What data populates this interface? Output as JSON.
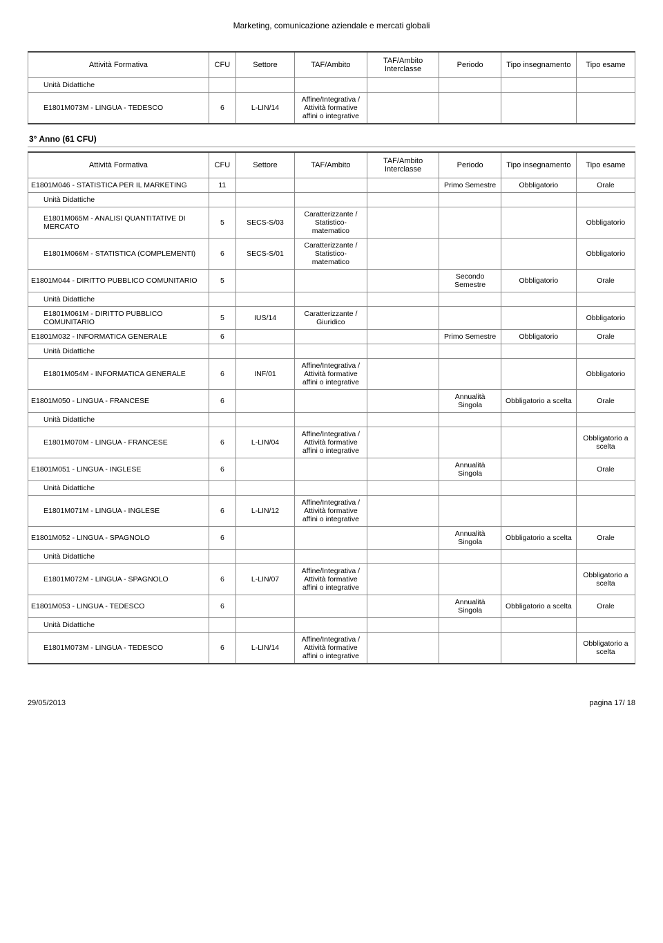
{
  "page_title": "Marketing, comunicazione aziendale e mercati globali",
  "headers": {
    "att": "Attività Formativa",
    "cfu": "CFU",
    "sett": "Settore",
    "taf": "TAF/Ambito",
    "tafi": "TAF/Ambito Interclasse",
    "per": "Periodo",
    "tipo": "Tipo insegnamento",
    "esame": "Tipo esame"
  },
  "unita_didattiche_label": "Unità Didattiche",
  "table1": {
    "ud_rows": [
      {
        "att": "E1801M073M - LINGUA - TEDESCO",
        "cfu": "6",
        "sett": "L-LIN/14",
        "taf": "Affine/Integrativa / Attività formative affini o integrative"
      }
    ]
  },
  "year_section": "3° Anno (61 CFU)",
  "table2": {
    "rows": [
      {
        "type": "main",
        "att": "E1801M046 - STATISTICA PER IL MARKETING",
        "cfu": "11",
        "sett": "",
        "taf": "",
        "tafi": "",
        "per": "Primo Semestre",
        "tipo": "Obbligatorio",
        "esame": "Orale"
      },
      {
        "type": "udlabel"
      },
      {
        "type": "ud",
        "att": "E1801M065M - ANALISI QUANTITATIVE DI MERCATO",
        "cfu": "5",
        "sett": "SECS-S/03",
        "taf": "Caratterizzante / Statistico-matematico",
        "esame": "Obbligatorio"
      },
      {
        "type": "ud",
        "att": "E1801M066M - STATISTICA (COMPLEMENTI)",
        "cfu": "6",
        "sett": "SECS-S/01",
        "taf": "Caratterizzante / Statistico-matematico",
        "esame": "Obbligatorio"
      },
      {
        "type": "main",
        "att": "E1801M044 - DIRITTO PUBBLICO COMUNITARIO",
        "cfu": "5",
        "sett": "",
        "taf": "",
        "tafi": "",
        "per": "Secondo Semestre",
        "tipo": "Obbligatorio",
        "esame": "Orale"
      },
      {
        "type": "udlabel"
      },
      {
        "type": "ud",
        "att": "E1801M061M - DIRITTO PUBBLICO COMUNITARIO",
        "cfu": "5",
        "sett": "IUS/14",
        "taf": "Caratterizzante / Giuridico",
        "esame": "Obbligatorio"
      },
      {
        "type": "main",
        "att": "E1801M032 - INFORMATICA GENERALE",
        "cfu": "6",
        "sett": "",
        "taf": "",
        "tafi": "",
        "per": "Primo Semestre",
        "tipo": "Obbligatorio",
        "esame": "Orale"
      },
      {
        "type": "udlabel"
      },
      {
        "type": "ud",
        "att": "E1801M054M - INFORMATICA GENERALE",
        "cfu": "6",
        "sett": "INF/01",
        "taf": "Affine/Integrativa / Attività formative affini o integrative",
        "esame": "Obbligatorio"
      },
      {
        "type": "main",
        "att": "E1801M050 - LINGUA - FRANCESE",
        "cfu": "6",
        "sett": "",
        "taf": "",
        "tafi": "",
        "per": "Annualità Singola",
        "tipo": "Obbligatorio a scelta",
        "esame": "Orale"
      },
      {
        "type": "udlabel"
      },
      {
        "type": "ud",
        "att": "E1801M070M - LINGUA - FRANCESE",
        "cfu": "6",
        "sett": "L-LIN/04",
        "taf": "Affine/Integrativa / Attività formative affini o integrative",
        "esame": "Obbligatorio a scelta"
      },
      {
        "type": "main",
        "att": "E1801M051 - LINGUA - INGLESE",
        "cfu": "6",
        "sett": "",
        "taf": "",
        "tafi": "",
        "per": "Annualità Singola",
        "tipo": "",
        "esame": "Orale"
      },
      {
        "type": "udlabel"
      },
      {
        "type": "ud",
        "att": "E1801M071M - LINGUA - INGLESE",
        "cfu": "6",
        "sett": "L-LIN/12",
        "taf": "Affine/Integrativa / Attività formative affini o integrative",
        "esame": ""
      },
      {
        "type": "main",
        "att": "E1801M052 - LINGUA - SPAGNOLO",
        "cfu": "6",
        "sett": "",
        "taf": "",
        "tafi": "",
        "per": "Annualità Singola",
        "tipo": "Obbligatorio a scelta",
        "esame": "Orale"
      },
      {
        "type": "udlabel"
      },
      {
        "type": "ud",
        "att": "E1801M072M - LINGUA - SPAGNOLO",
        "cfu": "6",
        "sett": "L-LIN/07",
        "taf": "Affine/Integrativa / Attività formative affini o integrative",
        "esame": "Obbligatorio a scelta"
      },
      {
        "type": "main",
        "att": "E1801M053 - LINGUA - TEDESCO",
        "cfu": "6",
        "sett": "",
        "taf": "",
        "tafi": "",
        "per": "Annualità Singola",
        "tipo": "Obbligatorio a scelta",
        "esame": "Orale"
      },
      {
        "type": "udlabel"
      },
      {
        "type": "ud",
        "att": "E1801M073M - LINGUA - TEDESCO",
        "cfu": "6",
        "sett": "L-LIN/14",
        "taf": "Affine/Integrativa / Attività formative affini o integrative",
        "esame": "Obbligatorio a scelta",
        "last": true
      }
    ]
  },
  "footer": {
    "date": "29/05/2013",
    "page": "pagina 17/ 18"
  }
}
